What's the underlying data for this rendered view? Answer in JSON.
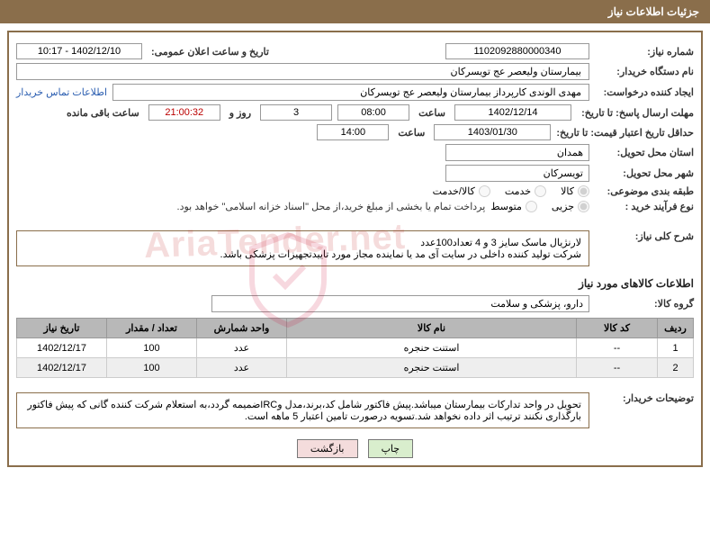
{
  "header": {
    "title": "جزئیات اطلاعات نیاز"
  },
  "fields": {
    "need_no_label": "شماره نیاز:",
    "need_no": "1102092880000340",
    "ann_dt_label": "تاریخ و ساعت اعلان عمومی:",
    "ann_dt": "1402/12/10 - 10:17",
    "buyer_org_label": "نام دستگاه خریدار:",
    "buyer_org": "بیمارستان ولیعصر  عج  تویسرکان",
    "requester_label": "ایجاد کننده درخواست:",
    "requester": "مهدی الوندی کارپرداز بیمارستان ولیعصر  عج  تویسرکان",
    "contact_link": "اطلاعات تماس خریدار",
    "reply_deadline_label": "مهلت ارسال پاسخ: تا تاریخ:",
    "reply_date": "1402/12/14",
    "time_label": "ساعت",
    "reply_time": "08:00",
    "days": "3",
    "days_and": "روز و",
    "countdown": "21:00:32",
    "remaining": "ساعت باقی مانده",
    "min_valid_label": "حداقل تاریخ اعتبار قیمت: تا تاریخ:",
    "min_valid_date": "1403/01/30",
    "min_valid_time": "14:00",
    "delivery_prov_label": "استان محل تحویل:",
    "delivery_prov": "همدان",
    "delivery_city_label": "شهر محل تحویل:",
    "delivery_city": "تویسرکان",
    "category_label": "طبقه بندی موضوعی:",
    "cat_goods": "کالا",
    "cat_service": "خدمت",
    "cat_goods_service": "کالا/خدمت",
    "proc_type_label": "نوع فرآیند خرید :",
    "proc_minor": "جزیی",
    "proc_medium": "متوسط",
    "proc_note": "پرداخت تمام یا بخشی از مبلغ خرید،از محل \"اسناد خزانه اسلامی\" خواهد بود.",
    "summary_label": "شرح کلی نیاز:",
    "summary_l1": "لارنژیال ماسک سایز 3 و 4 تعداد100عدد",
    "summary_l2": "شرکت تولید کننده داخلی در سایت آی مد یا نماینده مجاز مورد تاییدتجهیزات پزشکی باشد.",
    "items_title": "اطلاعات کالاهای مورد نیاز",
    "goods_group_label": "گروه کالا:",
    "goods_group": "دارو، پزشکی و سلامت",
    "buyer_notes_label": "توضیحات خریدار:",
    "buyer_notes": "تحویل در واحد تدارکات بیمارستان میباشد.پیش فاکتور شامل کد،برند،مدل وIRCضمیمه گردد،به استعلام شرکت کننده گانی که پیش فاکتور بارگذاری نکنند ترتیب اثر داده نخواهد شد.تسویه درصورت تامین اعتبار 5 ماهه است."
  },
  "table": {
    "headers": {
      "row": "ردیف",
      "code": "کد کالا",
      "name": "نام کالا",
      "unit": "واحد شمارش",
      "qty": "تعداد / مقدار",
      "date": "تاریخ نیاز"
    },
    "rows": [
      {
        "row": "1",
        "code": "--",
        "name": "استنت حنجره",
        "unit": "عدد",
        "qty": "100",
        "date": "1402/12/17"
      },
      {
        "row": "2",
        "code": "--",
        "name": "استنت حنجره",
        "unit": "عدد",
        "qty": "100",
        "date": "1402/12/17"
      }
    ]
  },
  "buttons": {
    "print": "چاپ",
    "back": "بازگشت"
  },
  "watermark": "AriaTender.net"
}
